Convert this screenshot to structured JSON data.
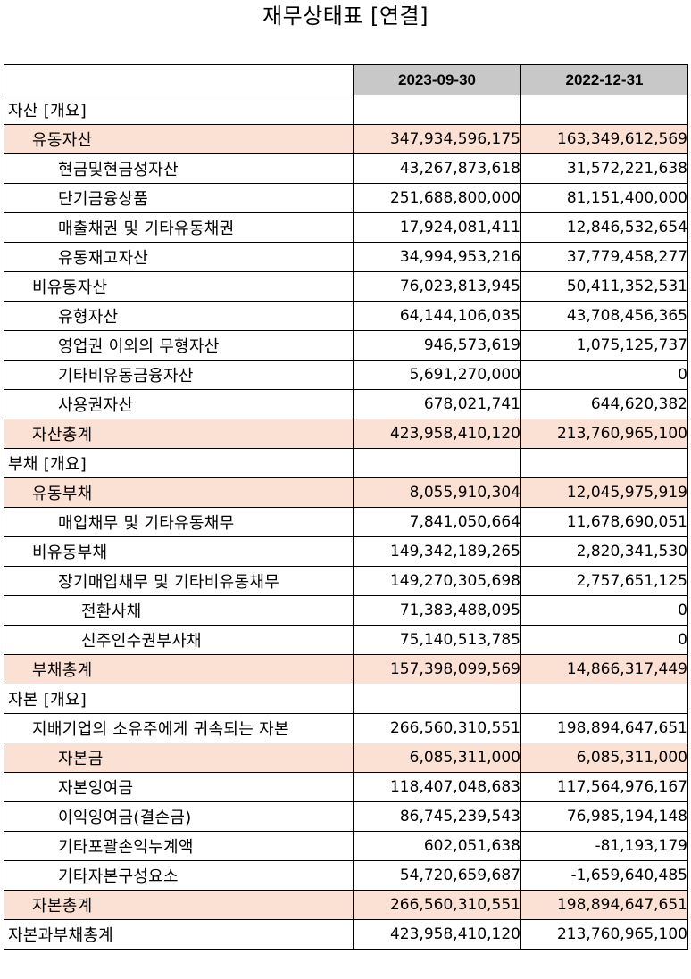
{
  "title": "재무상태표 [연결]",
  "columns": [
    "",
    "2023-09-30",
    "2022-12-31"
  ],
  "rows": [
    {
      "label": "자산 [개요]",
      "level": 0,
      "highlight": false,
      "v1": "",
      "v2": ""
    },
    {
      "label": "유동자산",
      "level": 1,
      "highlight": true,
      "v1": "347,934,596,175",
      "v2": "163,349,612,569"
    },
    {
      "label": "현금및현금성자산",
      "level": 2,
      "highlight": false,
      "v1": "43,267,873,618",
      "v2": "31,572,221,638"
    },
    {
      "label": "단기금융상품",
      "level": 2,
      "highlight": false,
      "v1": "251,688,800,000",
      "v2": "81,151,400,000"
    },
    {
      "label": "매출채권 및 기타유동채권",
      "level": 2,
      "highlight": false,
      "v1": "17,924,081,411",
      "v2": "12,846,532,654"
    },
    {
      "label": "유동재고자산",
      "level": 2,
      "highlight": false,
      "v1": "34,994,953,216",
      "v2": "37,779,458,277"
    },
    {
      "label": "비유동자산",
      "level": 1,
      "highlight": false,
      "v1": "76,023,813,945",
      "v2": "50,411,352,531"
    },
    {
      "label": "유형자산",
      "level": 2,
      "highlight": false,
      "v1": "64,144,106,035",
      "v2": "43,708,456,365"
    },
    {
      "label": "영업권 이외의 무형자산",
      "level": 2,
      "highlight": false,
      "v1": "946,573,619",
      "v2": "1,075,125,737"
    },
    {
      "label": "기타비유동금융자산",
      "level": 2,
      "highlight": false,
      "v1": "5,691,270,000",
      "v2": "0"
    },
    {
      "label": "사용권자산",
      "level": 2,
      "highlight": false,
      "v1": "678,021,741",
      "v2": "644,620,382"
    },
    {
      "label": "자산총계",
      "level": 1,
      "highlight": true,
      "v1": "423,958,410,120",
      "v2": "213,760,965,100"
    },
    {
      "label": "부채 [개요]",
      "level": 0,
      "highlight": false,
      "v1": "",
      "v2": ""
    },
    {
      "label": "유동부채",
      "level": 1,
      "highlight": true,
      "v1": "8,055,910,304",
      "v2": "12,045,975,919"
    },
    {
      "label": "매입채무 및 기타유동채무",
      "level": 2,
      "highlight": false,
      "v1": "7,841,050,664",
      "v2": "11,678,690,051"
    },
    {
      "label": "비유동부채",
      "level": 1,
      "highlight": false,
      "v1": "149,342,189,265",
      "v2": "2,820,341,530"
    },
    {
      "label": "장기매입채무 및 기타비유동채무",
      "level": 2,
      "highlight": false,
      "v1": "149,270,305,698",
      "v2": "2,757,651,125"
    },
    {
      "label": "전환사채",
      "level": 3,
      "highlight": false,
      "v1": "71,383,488,095",
      "v2": "0"
    },
    {
      "label": "신주인수권부사채",
      "level": 3,
      "highlight": false,
      "v1": "75,140,513,785",
      "v2": "0"
    },
    {
      "label": "부채총계",
      "level": 1,
      "highlight": true,
      "v1": "157,398,099,569",
      "v2": "14,866,317,449"
    },
    {
      "label": "자본 [개요]",
      "level": 0,
      "highlight": false,
      "v1": "",
      "v2": ""
    },
    {
      "label": "지배기업의 소유주에게 귀속되는 자본",
      "level": 1,
      "highlight": false,
      "v1": "266,560,310,551",
      "v2": "198,894,647,651"
    },
    {
      "label": "자본금",
      "level": 2,
      "highlight": true,
      "v1": "6,085,311,000",
      "v2": "6,085,311,000"
    },
    {
      "label": "자본잉여금",
      "level": 2,
      "highlight": false,
      "v1": "118,407,048,683",
      "v2": "117,564,976,167"
    },
    {
      "label": "이익잉여금(결손금)",
      "level": 2,
      "highlight": false,
      "v1": "86,745,239,543",
      "v2": "76,985,194,148"
    },
    {
      "label": "기타포괄손익누계액",
      "level": 2,
      "highlight": false,
      "v1": "602,051,638",
      "v2": "-81,193,179"
    },
    {
      "label": "기타자본구성요소",
      "level": 2,
      "highlight": false,
      "v1": "54,720,659,687",
      "v2": "-1,659,640,485"
    },
    {
      "label": "자본총계",
      "level": 1,
      "highlight": true,
      "v1": "266,560,310,551",
      "v2": "198,894,647,651"
    },
    {
      "label": "자본과부채총계",
      "level": 0,
      "highlight": false,
      "v1": "423,958,410,120",
      "v2": "213,760,965,100"
    }
  ]
}
